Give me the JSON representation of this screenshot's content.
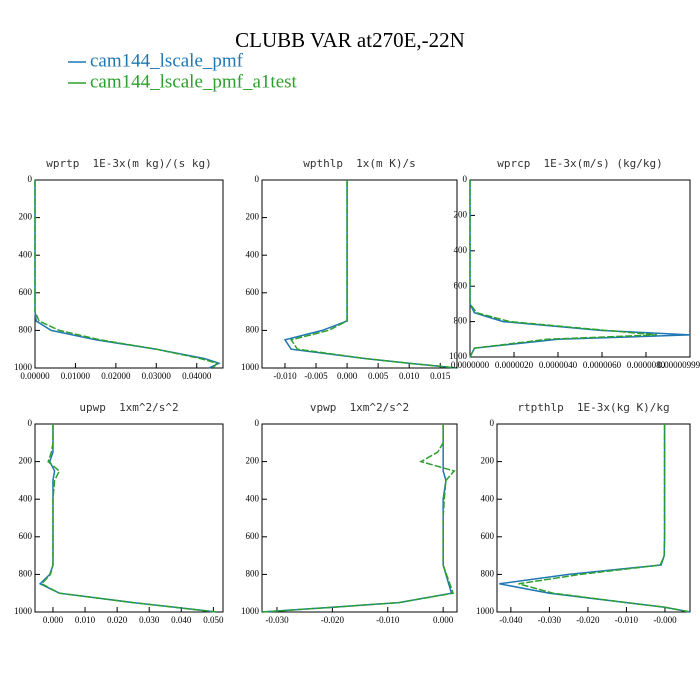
{
  "title": "CLUBB VAR at270E,-22N",
  "chart_data": [
    {
      "type": "line",
      "title": "wprtp  1E-3x(m kg)/(s kg)",
      "y": [
        0,
        100,
        150,
        200,
        250,
        300,
        400,
        500,
        600,
        700,
        750,
        800,
        850,
        900,
        950,
        975,
        1000
      ],
      "series": [
        {
          "name": "cam144_lscale_pmf",
          "color": "#1f77b4",
          "values": [
            0,
            0,
            0,
            0,
            0,
            0,
            0,
            0,
            0,
            0,
            0.0003,
            0.004,
            0.015,
            0.03,
            0.042,
            0.0455,
            0.043
          ]
        },
        {
          "name": "cam144_lscale_pmf_a1test",
          "color": "#2ca02c",
          "values": [
            0,
            0,
            0,
            0,
            0,
            0,
            0,
            0,
            0,
            0,
            0.001,
            0.006,
            0.016,
            0.03,
            0.041,
            0.045,
            0.044
          ]
        }
      ],
      "xlim": [
        0,
        0.0465
      ],
      "xticks": [
        {
          "value": 0,
          "label": "0.00000"
        },
        {
          "value": 0.01,
          "label": "0.01000"
        },
        {
          "value": 0.02,
          "label": "0.02000"
        },
        {
          "value": 0.03,
          "label": "0.03000"
        },
        {
          "value": 0.04,
          "label": "0.04000"
        }
      ],
      "ylim": [
        0,
        1000
      ],
      "yticks": [
        0,
        200,
        400,
        600,
        800,
        1000
      ],
      "yinverted": true
    },
    {
      "type": "line",
      "title": "wpthlp  1x(m K)/s",
      "y": [
        0,
        100,
        150,
        200,
        250,
        300,
        400,
        500,
        600,
        700,
        750,
        800,
        850,
        900,
        950,
        975,
        1000
      ],
      "series": [
        {
          "color": "#1f77b4",
          "values": [
            0,
            0,
            0,
            0,
            0,
            0,
            0,
            0,
            0,
            0,
            0,
            -0.004,
            -0.01,
            -0.009,
            0.003,
            0.01,
            0.0177
          ]
        },
        {
          "color": "#2ca02c",
          "values": [
            0,
            0,
            0,
            0,
            0,
            0,
            0,
            0,
            0,
            0,
            0,
            -0.003,
            -0.009,
            -0.008,
            0.003,
            0.01,
            0.0177
          ]
        }
      ],
      "xlim": [
        -0.0137,
        0.0177
      ],
      "xticks": [
        {
          "value": -0.01,
          "label": "-0.010"
        },
        {
          "value": -0.005,
          "label": "-0.005"
        },
        {
          "value": 0,
          "label": "0.000"
        },
        {
          "value": 0.005,
          "label": "0.005"
        },
        {
          "value": 0.01,
          "label": "0.010"
        },
        {
          "value": 0.015,
          "label": "0.015"
        }
      ],
      "ylim": [
        0,
        1000
      ],
      "yticks": [
        0,
        200,
        400,
        600,
        800,
        1000
      ],
      "yinverted": true
    },
    {
      "type": "line",
      "title": "wprcp  1E-3x(m/s) (kg/kg)",
      "y": [
        0,
        100,
        150,
        200,
        250,
        300,
        400,
        500,
        600,
        700,
        750,
        800,
        850,
        875,
        900,
        950,
        1000
      ],
      "series": [
        {
          "color": "#1f77b4",
          "values": [
            0,
            0,
            0,
            0,
            0,
            0,
            0,
            0,
            0,
            0,
            2e-07,
            1.5e-06,
            6e-06,
            1e-05,
            4e-06,
            2e-07,
            0
          ]
        },
        {
          "color": "#2ca02c",
          "values": [
            0,
            0,
            0,
            0,
            0,
            0,
            0,
            0,
            0,
            0,
            3e-07,
            1.8e-06,
            6.2e-06,
            8.5e-06,
            3.5e-06,
            2e-07,
            0
          ]
        }
      ],
      "xlim": [
        0,
        1e-05
      ],
      "xticks": [
        {
          "value": 0,
          "label": "0.0000000"
        },
        {
          "value": 2e-06,
          "label": "0.0000020"
        },
        {
          "value": 4e-06,
          "label": "0.0000040"
        },
        {
          "value": 6e-06,
          "label": "0.0000060"
        },
        {
          "value": 8e-06,
          "label": "0.0000080"
        },
        {
          "value": 1e-05,
          "label": "0.0000099999980"
        }
      ],
      "ylim": [
        0,
        1000
      ],
      "yticks": [
        0,
        200,
        400,
        600,
        800,
        1000
      ],
      "yinverted": true
    },
    {
      "type": "line",
      "title": "upwp  1xm^2/s^2",
      "y": [
        0,
        100,
        150,
        200,
        250,
        300,
        400,
        500,
        600,
        700,
        750,
        800,
        850,
        900,
        950,
        975,
        1000
      ],
      "series": [
        {
          "color": "#1f77b4",
          "values": [
            0,
            0,
            0,
            -0.001,
            0.0005,
            0,
            0,
            0,
            0,
            0,
            0,
            -0.001,
            -0.004,
            0.002,
            0.025,
            0.038,
            0.051
          ]
        },
        {
          "color": "#2ca02c",
          "values": [
            0,
            0,
            -0.0005,
            -0.0015,
            0.002,
            0.0005,
            0,
            0,
            0,
            0,
            0,
            -0.0008,
            -0.0035,
            0.002,
            0.025,
            0.038,
            0.051
          ]
        }
      ],
      "xlim": [
        -0.0056,
        0.053
      ],
      "xticks": [
        {
          "value": 0,
          "label": "0.000"
        },
        {
          "value": 0.01,
          "label": "0.010"
        },
        {
          "value": 0.02,
          "label": "0.020"
        },
        {
          "value": 0.03,
          "label": "0.030"
        },
        {
          "value": 0.04,
          "label": "0.040"
        },
        {
          "value": 0.05,
          "label": "0.050"
        }
      ],
      "ylim": [
        0,
        1000
      ],
      "yticks": [
        0,
        200,
        400,
        600,
        800,
        1000
      ],
      "yinverted": true
    },
    {
      "type": "line",
      "title": "vpwp  1xm^2/s^2",
      "y": [
        0,
        100,
        150,
        200,
        250,
        300,
        400,
        500,
        600,
        700,
        750,
        800,
        850,
        900,
        950,
        975,
        1000
      ],
      "series": [
        {
          "color": "#1f77b4",
          "values": [
            0,
            0,
            0,
            0,
            0,
            0.0005,
            0,
            0,
            0,
            0,
            0,
            0.0005,
            0.001,
            0.0015,
            -0.008,
            -0.02,
            -0.0327
          ]
        },
        {
          "color": "#2ca02c",
          "values": [
            0,
            0,
            -0.001,
            -0.004,
            0.002,
            0.0005,
            0.0002,
            0,
            0,
            0,
            0,
            0.0006,
            0.0012,
            0.0018,
            -0.008,
            -0.02,
            -0.0327
          ]
        }
      ],
      "xlim": [
        -0.0327,
        0.0025
      ],
      "xticks": [
        {
          "value": -0.03,
          "label": "-0.030"
        },
        {
          "value": -0.02,
          "label": "-0.020"
        },
        {
          "value": -0.01,
          "label": "-0.010"
        },
        {
          "value": 0,
          "label": "0.000"
        }
      ],
      "ylim": [
        0,
        1000
      ],
      "yticks": [
        0,
        200,
        400,
        600,
        800,
        1000
      ],
      "yinverted": true
    },
    {
      "type": "line",
      "title": "rtpthlp  1E-3x(kg K)/kg",
      "y": [
        0,
        100,
        150,
        200,
        250,
        300,
        400,
        500,
        600,
        700,
        750,
        800,
        850,
        900,
        950,
        975,
        1000
      ],
      "series": [
        {
          "color": "#1f77b4",
          "values": [
            -0.0001,
            -0.0001,
            -0.0001,
            -0.0001,
            -0.0001,
            -0.0001,
            -0.0001,
            -0.0001,
            -0.0001,
            -0.0002,
            -0.001,
            -0.025,
            -0.043,
            -0.03,
            -0.01,
            0,
            0.0065
          ]
        },
        {
          "color": "#2ca02c",
          "values": [
            -0.0001,
            -0.0001,
            -0.0001,
            -0.0001,
            -0.0001,
            -0.0001,
            -0.0001,
            -0.0001,
            -0.0001,
            -0.0002,
            -0.0012,
            -0.022,
            -0.038,
            -0.029,
            -0.01,
            0,
            0.0065
          ]
        }
      ],
      "xlim": [
        -0.0436,
        0.0065
      ],
      "xticks": [
        {
          "value": -0.04,
          "label": "-0.040"
        },
        {
          "value": -0.03,
          "label": "-0.030"
        },
        {
          "value": -0.02,
          "label": "-0.020"
        },
        {
          "value": -0.01,
          "label": "-0.010"
        },
        {
          "value": 0,
          "label": "-0.000"
        }
      ],
      "ylim": [
        0,
        1000
      ],
      "yticks": [
        0,
        200,
        400,
        600,
        800,
        1000
      ],
      "yinverted": true
    }
  ]
}
